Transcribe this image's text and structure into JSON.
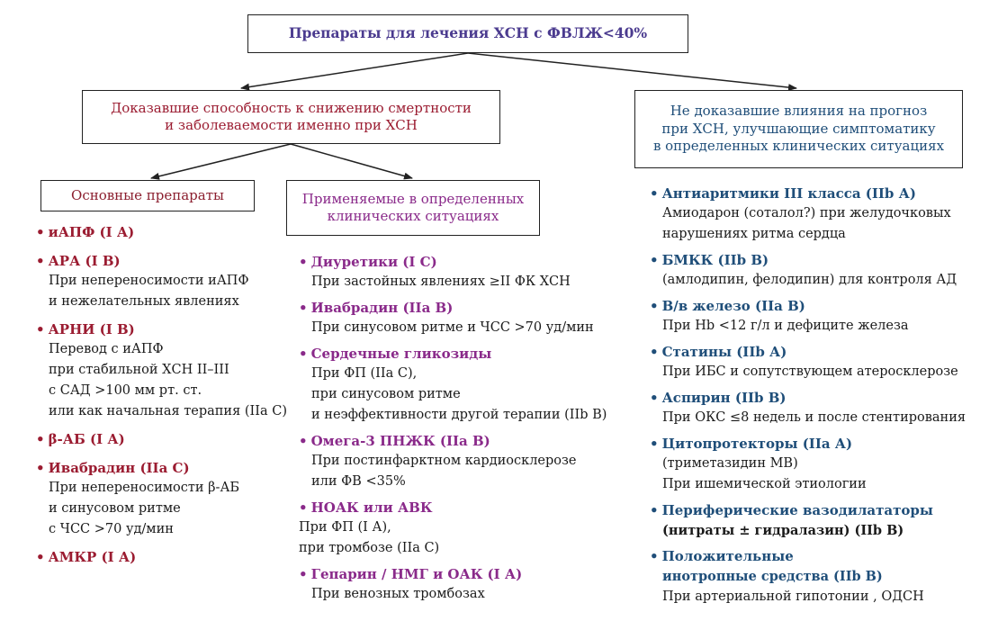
{
  "top": {
    "title": "Препараты для лечения ХСН с ФВЛЖ<40%"
  },
  "left_branch": {
    "lines": [
      "Доказавшие способность к снижению смертности",
      "и заболеваемости именно при ХСН"
    ]
  },
  "right_branch": {
    "lines": [
      "Не доказавшие влияния на прогноз",
      "при ХСН, улучшающие симптоматику",
      "в определенных клинических ситуациях"
    ]
  },
  "main_drugs": {
    "title": "Основные препараты"
  },
  "situational": {
    "lines": [
      "Применяемые в определенных",
      "клинических ситуациях"
    ]
  },
  "colors": {
    "top": "#4b3b8f",
    "left": "#9b1c31",
    "middle": "#8a2a8a",
    "right": "#1f4e79"
  },
  "left_items": [
    {
      "head": "иАПФ (I А)",
      "lines": []
    },
    {
      "head": "АРА (I В)",
      "lines": [
        "При непереносимости иАПФ",
        "и нежелательных явлениях"
      ]
    },
    {
      "head": "АРНИ (I В)",
      "lines": [
        "Перевод с иАПФ",
        "при стабильной ХСН II–III",
        "с САД >100 мм рт. ст.",
        "или как начальная терапия (IIa С)"
      ]
    },
    {
      "head": "β-АБ (I А)",
      "lines": []
    },
    {
      "head": "Ивабрадин (IIa С)",
      "lines": [
        "При непереносимости β-АБ",
        "и синусовом ритме",
        "с ЧСС >70 уд/мин"
      ]
    },
    {
      "head": "АМКР (I А)",
      "lines": []
    }
  ],
  "middle_items": [
    {
      "head": "Диуретики (I С)",
      "lines": [
        "При застойных явлениях ≥II ФК ХСН"
      ]
    },
    {
      "head": "Ивабрадин (IIa В)",
      "lines": [
        "При синусовом ритме и ЧСС >70 уд/мин"
      ]
    },
    {
      "head": "Сердечные гликозиды",
      "lines": [
        "При ФП (IIa С),",
        "при синусовом ритме",
        "и неэффективности другой терапии (IIb В)"
      ]
    },
    {
      "head": "Омега-3 ПНЖК (IIa В)",
      "lines": [
        "При постинфарктном кардиосклерозе",
        "или ФВ <35%"
      ]
    },
    {
      "head": "НОАК или АВК",
      "lines": [
        "При ФП (I А),",
        "при тромбозе (IIa С)"
      ]
    },
    {
      "head": "Гепарин / НМГ и ОАК (I А)",
      "lines": [
        "При венозных тромбозах"
      ]
    }
  ],
  "right_items": [
    {
      "head": "Антиаритмики III класса (IIb А)",
      "lines": [
        "Амиодарон (соталол?) при желудочковых",
        "нарушениях ритма сердца"
      ]
    },
    {
      "head": "БМКК (IIb В)",
      "lines": [
        "(амлодипин, фелодипин) для контроля АД"
      ]
    },
    {
      "head": "В/в железо (IIa В)",
      "lines": [
        "При Hb <12 г/л и дефиците железа"
      ]
    },
    {
      "head": "Статины (IIb А)",
      "lines": [
        "При ИБС и сопутствующем атеросклерозе"
      ]
    },
    {
      "head": "Аспирин (IIb В)",
      "lines": [
        "При ОКС ≤8 недель и после стентирования"
      ]
    },
    {
      "head": "Цитопротекторы (IIa А)",
      "lines": [
        "(триметазидин МВ)",
        "При ишемической этиологии"
      ]
    },
    {
      "head": "Периферические вазодилататоры",
      "lines": [
        "(нитраты ± гидралазин) (IIb В)"
      ]
    },
    {
      "head": "Положительные",
      "lines": [
        "инотропные средства (IIb В)",
        "При артериальной гипотонии , ОДСН"
      ]
    }
  ]
}
